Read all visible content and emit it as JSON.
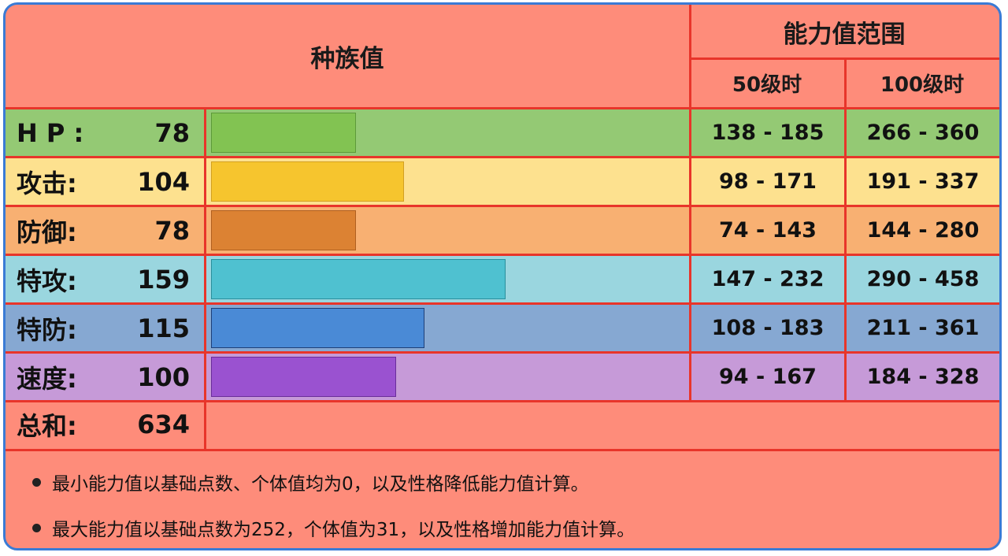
{
  "header": {
    "base_stats_title": "种族值",
    "range_title": "能力值范围",
    "level50": "50级时",
    "level100": "100级时"
  },
  "stats": [
    {
      "label": "H P :",
      "value": "78",
      "base": 78,
      "range50": "138 - 185",
      "range100": "266 - 360",
      "row_color": "#94c974",
      "bar_color": "#82c352",
      "bar_border": "#5d9a3a"
    },
    {
      "label": "攻击:",
      "value": "104",
      "base": 104,
      "range50": "98 - 171",
      "range100": "191 - 337",
      "row_color": "#fde18f",
      "bar_color": "#f6c52e",
      "bar_border": "#d3a020"
    },
    {
      "label": "防御:",
      "value": "78",
      "base": 78,
      "range50": "74 - 143",
      "range100": "144 - 280",
      "row_color": "#f8b072",
      "bar_color": "#dc8233",
      "bar_border": "#b06020"
    },
    {
      "label": "特攻:",
      "value": "159",
      "base": 159,
      "range50": "147 - 232",
      "range100": "290 - 458",
      "row_color": "#9ad6df",
      "bar_color": "#4fc1d0",
      "bar_border": "#2a8f9c"
    },
    {
      "label": "特防:",
      "value": "115",
      "base": 115,
      "range50": "108 - 183",
      "range100": "211 - 361",
      "row_color": "#86a8d2",
      "bar_color": "#4a8ad6",
      "bar_border": "#1e3f78"
    },
    {
      "label": "速度:",
      "value": "100",
      "base": 100,
      "range50": "94 - 167",
      "range100": "184 - 328",
      "row_color": "#c69ad8",
      "bar_color": "#9a52d0",
      "bar_border": "#6a2e9a"
    }
  ],
  "total": {
    "label": "总和:",
    "value": "634"
  },
  "notes": [
    "最小能力值以基础点数、个体值均为0，以及性格降低能力值计算。",
    "最大能力值以基础点数为252，个体值为31，以及性格增加能力值计算。"
  ],
  "colors": {
    "background": "#fe8c7a",
    "grid": "#e8352a",
    "frame_border": "#3a7bd5"
  }
}
